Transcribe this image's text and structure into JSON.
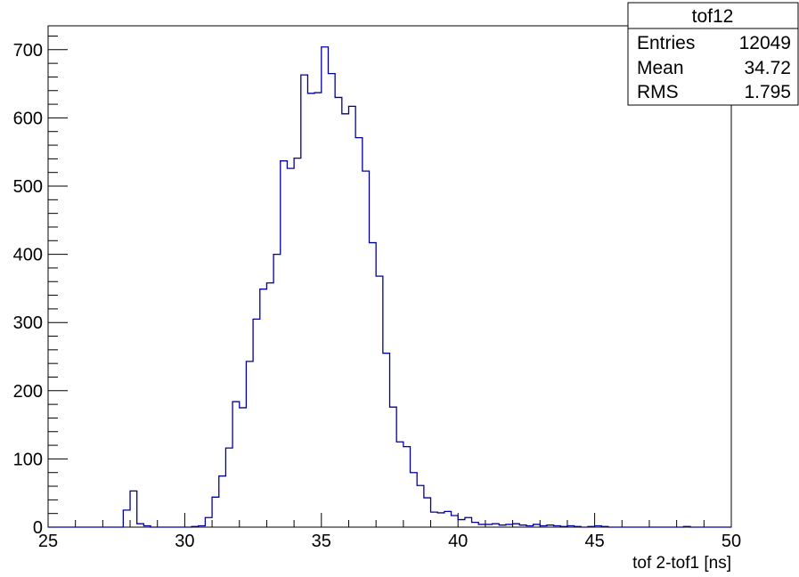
{
  "chart_data": {
    "type": "histogram",
    "title": "",
    "xlabel": "tof 2-tof1 [ns]",
    "ylabel": "",
    "xlim": [
      25,
      50
    ],
    "ylim": [
      0,
      735
    ],
    "x_ticks": [
      "25",
      "30",
      "35",
      "40",
      "45",
      "50"
    ],
    "y_ticks": [
      "0",
      "100",
      "200",
      "300",
      "400",
      "500",
      "600",
      "700"
    ],
    "line_color": "#000099",
    "bin_width": 0.25,
    "bins_start": 27.75,
    "values": [
      25,
      53,
      5,
      2,
      0,
      0,
      0,
      0,
      0,
      0,
      1,
      2,
      14,
      44,
      75,
      116,
      184,
      175,
      243,
      305,
      349,
      358,
      400,
      537,
      526,
      541,
      663,
      636,
      637,
      704,
      665,
      630,
      606,
      617,
      571,
      522,
      417,
      368,
      255,
      176,
      125,
      118,
      80,
      61,
      43,
      22,
      21,
      23,
      17,
      11,
      14,
      7,
      4,
      4,
      5,
      3,
      4,
      5,
      3,
      2,
      4,
      2,
      3,
      2,
      1,
      2,
      1,
      0,
      1,
      2,
      1,
      0,
      0,
      0,
      0,
      0,
      0,
      0,
      0,
      0,
      0,
      0,
      1,
      0,
      0
    ]
  },
  "stats_box": {
    "name": "tof12",
    "entries_label": "Entries",
    "entries_value": "12049",
    "mean_label": "Mean",
    "mean_value": "34.72",
    "rms_label": "RMS",
    "rms_value": "1.795"
  }
}
